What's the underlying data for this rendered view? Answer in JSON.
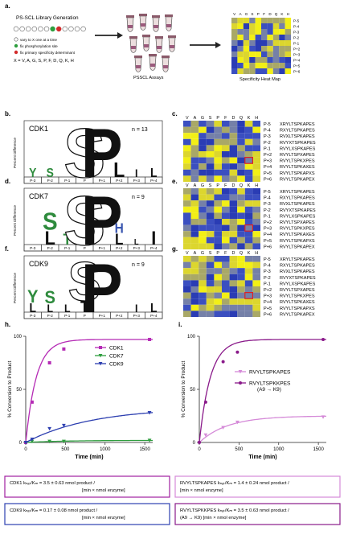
{
  "panel_a": {
    "letter": "a.",
    "title": "PS-SCL Library Generation",
    "legend": [
      "vary to X one at a time",
      "fix phosphorylation site",
      "fix primary specificity determinant"
    ],
    "x_def": "X = V, A, G, S, P, F, D, Q, K, H",
    "assay_label": "PSSCL Assays",
    "heatmap_label": "Specificity Heat Map",
    "heatmap_cols": [
      "V",
      "A",
      "G",
      "S",
      "P",
      "F",
      "D",
      "Q",
      "K",
      "H"
    ],
    "heatmap_rows": [
      "P-5",
      "P-4",
      "P-3",
      "P-2",
      "P-1",
      "P+2",
      "P+3",
      "P+4",
      "P+5",
      "P+6"
    ]
  },
  "logos": [
    {
      "letter": "b.",
      "kinase": "CDK1",
      "n": "n = 13",
      "ylabel": "Percent Difference",
      "positions": [
        "P-3",
        "P-2",
        "P-1",
        "P",
        "P+1",
        "P+2",
        "P+3",
        "P+4"
      ],
      "glyphs": [
        {
          "char": "Y",
          "pos": 0,
          "size": 0.18,
          "color": "#2e8b3d",
          "stack": 0
        },
        {
          "char": "S",
          "pos": 1,
          "size": 0.18,
          "color": "#2e8b3d",
          "stack": 0
        },
        {
          "char": "S",
          "pos": 3,
          "size": 1.0,
          "color": "#111111",
          "stack": 0,
          "outline": true
        },
        {
          "char": "P",
          "pos": 4,
          "size": 1.0,
          "color": "#111111",
          "stack": 0
        },
        {
          "char": "L",
          "pos": 5,
          "size": 0.3,
          "color": "#111111",
          "stack": 0
        },
        {
          "char": "I",
          "pos": 6,
          "size": 0.16,
          "color": "#111111",
          "stack": 0
        },
        {
          "char": "L",
          "pos": 7,
          "size": 0.18,
          "color": "#111111",
          "stack": 0
        }
      ]
    },
    {
      "letter": "d.",
      "kinase": "CDK7",
      "n": "n = 9",
      "ylabel": "Percent Difference",
      "positions": [
        "P-3",
        "P-2",
        "P-1",
        "P",
        "P+1",
        "P+2",
        "P+3",
        "P+4"
      ],
      "glyphs": [
        {
          "char": "L",
          "pos": 1,
          "size": 0.28,
          "color": "#111111",
          "stack": 0
        },
        {
          "char": "S",
          "pos": 1,
          "size": 0.36,
          "color": "#2e8b3d",
          "stack": 1
        },
        {
          "char": "T",
          "pos": 2,
          "size": 0.22,
          "color": "#2e8b3d",
          "stack": 0
        },
        {
          "char": "S",
          "pos": 3,
          "size": 1.0,
          "color": "#111111",
          "stack": 0,
          "outline": true
        },
        {
          "char": "P",
          "pos": 4,
          "size": 1.0,
          "color": "#111111",
          "stack": 0
        },
        {
          "char": "L",
          "pos": 5,
          "size": 0.22,
          "color": "#111111",
          "stack": 0
        },
        {
          "char": "H",
          "pos": 5,
          "size": 0.2,
          "color": "#3a56b0",
          "stack": 1
        },
        {
          "char": "L",
          "pos": 6,
          "size": 0.12,
          "color": "#111111",
          "stack": 0
        },
        {
          "char": "I",
          "pos": 7,
          "size": 0.28,
          "color": "#111111",
          "stack": 0
        }
      ]
    },
    {
      "letter": "f.",
      "kinase": "CDK9",
      "n": "n = 9",
      "ylabel": "Percent Difference",
      "positions": [
        "P-3",
        "P-2",
        "P-1",
        "P",
        "P+1",
        "P+2",
        "P+3",
        "P+4"
      ],
      "glyphs": [
        {
          "char": "L",
          "pos": 0,
          "size": 0.18,
          "color": "#111111",
          "stack": 0
        },
        {
          "char": "Y",
          "pos": 0,
          "size": 0.26,
          "color": "#2e8b3d",
          "stack": 1
        },
        {
          "char": "L",
          "pos": 1,
          "size": 0.16,
          "color": "#111111",
          "stack": 0
        },
        {
          "char": "S",
          "pos": 1,
          "size": 0.26,
          "color": "#2e8b3d",
          "stack": 1
        },
        {
          "char": "L",
          "pos": 2,
          "size": 0.16,
          "color": "#111111",
          "stack": 0
        },
        {
          "char": "T",
          "pos": 3,
          "size": 0.22,
          "color": "#111111",
          "stack": 0
        },
        {
          "char": "S",
          "pos": 3,
          "size": 0.8,
          "color": "#111111",
          "stack": 1,
          "outline": true
        },
        {
          "char": "P",
          "pos": 4,
          "size": 1.0,
          "color": "#111111",
          "stack": 0
        },
        {
          "char": "I",
          "pos": 6,
          "size": 0.16,
          "color": "#111111",
          "stack": 0
        },
        {
          "char": "L",
          "pos": 7,
          "size": 0.18,
          "color": "#111111",
          "stack": 0
        }
      ]
    }
  ],
  "heatmaps": [
    {
      "letter": "c.",
      "cols": [
        "V",
        "A",
        "G",
        "S",
        "P",
        "F",
        "D",
        "Q",
        "K",
        "H"
      ],
      "rows": [
        "P-5",
        "P-4",
        "P-3",
        "P-2",
        "P-1",
        "P+2",
        "P+3",
        "P+4",
        "P+5",
        "P+6"
      ],
      "seqs": [
        "XRYLTSPKAPES",
        "RXYLTSPKAPES",
        "RVXLTSPKAPES",
        "RVYXTSPKAPES",
        "RVYLXSPKAPES",
        "RVYLTSPXAPES",
        "RVYLTSPKXPES",
        "RVYLTSPKAXES",
        "RVYLTSPKAPXS",
        "RVYLTSPKAPEX"
      ],
      "highlight": [
        6,
        8
      ]
    },
    {
      "letter": "e.",
      "cols": [
        "V",
        "A",
        "G",
        "S",
        "P",
        "F",
        "D",
        "Q",
        "K",
        "H"
      ],
      "rows": [
        "P-5",
        "P-4",
        "P-3",
        "P-2",
        "P-1",
        "P+2",
        "P+3",
        "P+4",
        "P+5",
        "P+6"
      ],
      "seqs": [
        "XRYLTSPKAPES",
        "RXYLTSPKAPES",
        "RVXLTSPKAPES",
        "RVYXTSPKAPES",
        "RVYLXSPKAPES",
        "RVYLTSPXAPES",
        "RVYLTSPKXPES",
        "RVYLTSPKAXES",
        "RVYLTSPKAPXS",
        "RVYLTSPKAPEX"
      ],
      "highlight": [
        6,
        8
      ]
    },
    {
      "letter": "g.",
      "cols": [
        "V",
        "A",
        "G",
        "S",
        "P",
        "F",
        "D",
        "Q",
        "K",
        "H"
      ],
      "rows": [
        "P-5",
        "P-4",
        "P-3",
        "P-2",
        "P-1",
        "P+2",
        "P+3",
        "P+4",
        "P+5",
        "P+6"
      ],
      "seqs": [
        "XRYLTSPKAPES",
        "RXYLTSPKAPES",
        "RVXLTSPKAPES",
        "RVYXTSPKAPES",
        "RVYLXSPKAPES",
        "RVYLTSPXAPES",
        "RVYLTSPKXPES",
        "RVYLTSPKAXES",
        "RVYLTSPKAPXS",
        "RVYLTSPKAPEX"
      ],
      "highlight": [
        6,
        8
      ]
    }
  ],
  "chart_data": [
    {
      "type": "scatter",
      "letter": "h.",
      "xlabel": "Time (min)",
      "ylabel": "% Conversion to Product",
      "xlim": [
        0,
        1600
      ],
      "ylim": [
        0,
        100
      ],
      "xticks": [
        0,
        500,
        1000,
        1500
      ],
      "yticks": [
        0,
        50,
        100
      ],
      "series": [
        {
          "name": "CDK1",
          "color": "#b52bb5",
          "marker": "square",
          "points": [
            [
              0,
              0
            ],
            [
              80,
              38
            ],
            [
              300,
              75
            ],
            [
              480,
              88
            ],
            [
              1560,
              97
            ]
          ],
          "fit_vmax": 97,
          "fit_k": 0.0075
        },
        {
          "name": "CDK7",
          "color": "#2e9e3e",
          "marker": "triangle-down",
          "points": [
            [
              0,
              0
            ],
            [
              80,
              1
            ],
            [
              300,
              1
            ],
            [
              480,
              1
            ],
            [
              1560,
              2
            ]
          ],
          "fit_vmax": 2,
          "fit_k": 0.002
        },
        {
          "name": "CDK9",
          "color": "#2d3fb0",
          "marker": "triangle-down",
          "points": [
            [
              0,
              0
            ],
            [
              80,
              3
            ],
            [
              300,
              13
            ],
            [
              480,
              16
            ],
            [
              1560,
              28
            ]
          ],
          "fit_vmax": 33,
          "fit_k": 0.0012
        }
      ],
      "boxes": [
        {
          "lines": [
            "CDK1 kₙₐₜ/Kₘ = 3.5 ± 0.63 nmol product /",
            "[min × nmol enzyme]"
          ],
          "color": "#a020a0"
        },
        {
          "lines": [
            "CDK9 kₙₐₜ/Kₘ = 0.17 ± 0.08 nmol product /",
            "[min × nmol enzyme]"
          ],
          "color": "#2d3fb0"
        }
      ]
    },
    {
      "type": "scatter",
      "letter": "i.",
      "xlabel": "Time (min)",
      "ylabel": "% Conversion to Product",
      "xlim": [
        0,
        1600
      ],
      "ylim": [
        0,
        100
      ],
      "xticks": [
        0,
        500,
        1000,
        1500
      ],
      "yticks": [
        0,
        50,
        100
      ],
      "series": [
        {
          "name": "RVYLTSPKAPES",
          "color": "#d58ad8",
          "marker": "triangle-down",
          "points": [
            [
              0,
              0
            ],
            [
              80,
              7
            ],
            [
              300,
              14
            ],
            [
              480,
              19
            ],
            [
              1560,
              24
            ]
          ],
          "fit_vmax": 25,
          "fit_k": 0.0028
        },
        {
          "name": "RVYLTSPKKPES",
          "sub": "(A9 → K9)",
          "color": "#8a1a8a",
          "marker": "circle",
          "points": [
            [
              0,
              0
            ],
            [
              80,
              38
            ],
            [
              300,
              76
            ],
            [
              480,
              85
            ],
            [
              1560,
              97
            ]
          ],
          "fit_vmax": 97,
          "fit_k": 0.0072
        }
      ],
      "boxes": [
        {
          "lines": [
            "RVYLTSPKAPES kₙₐₜ/Kₘ = 1.4 ± 0.24 nmol product /",
            "[min × nmol enzyme]"
          ],
          "color": "#d58ad8"
        },
        {
          "lines": [
            "RVYLTSPKKPES kₙₐₜ/Kₘ =  3.5 ± 0.63 nmol product /",
            "(A9 → K9)          [min × nmol enzyme]"
          ],
          "color": "#8a1a8a"
        }
      ]
    }
  ]
}
